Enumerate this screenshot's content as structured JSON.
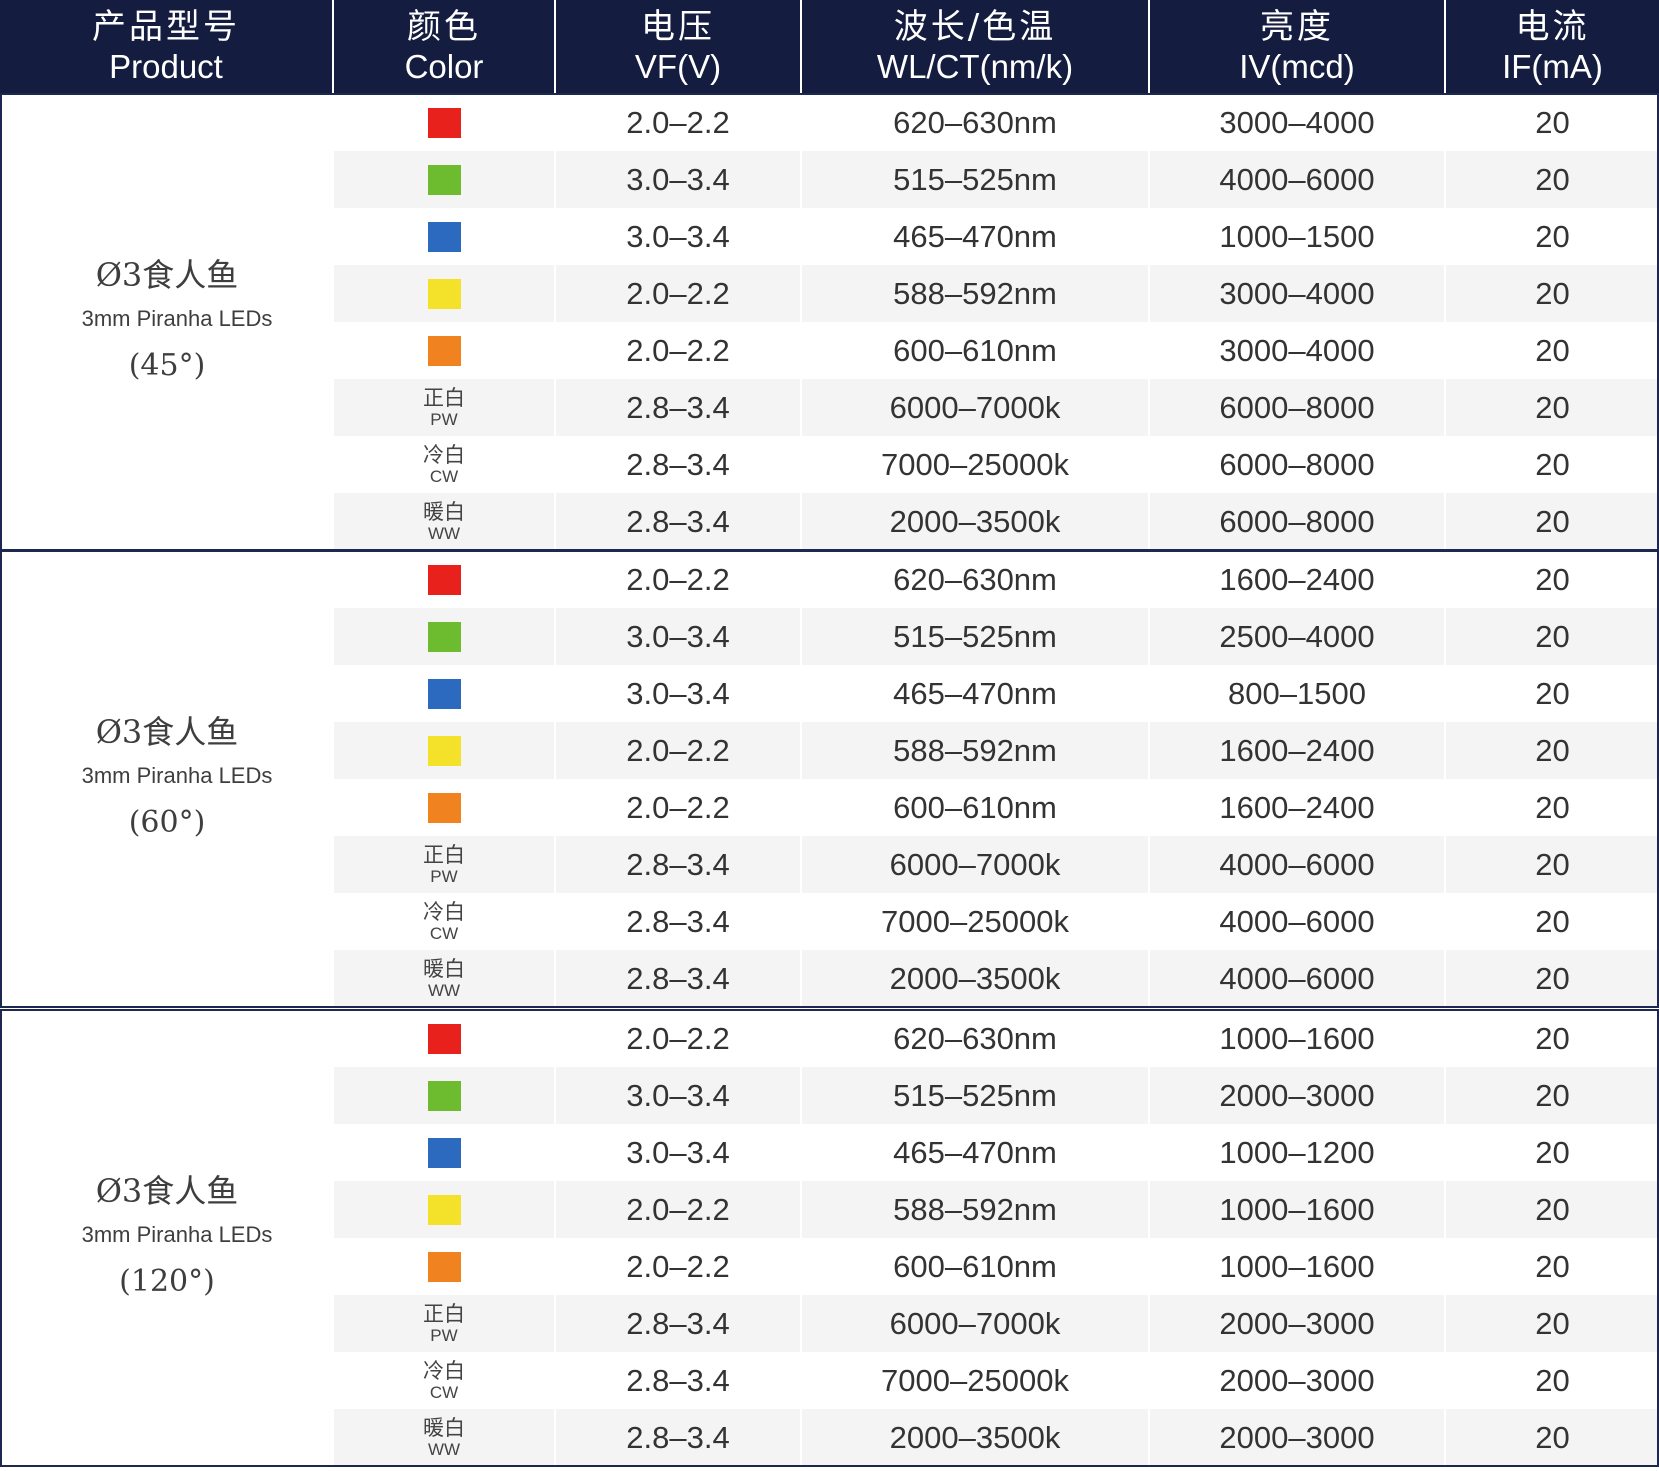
{
  "header": [
    {
      "zh": "产品型号",
      "en": "Product"
    },
    {
      "zh": "颜色",
      "en": "Color"
    },
    {
      "zh": "电压",
      "en": "VF(V)"
    },
    {
      "zh": "波长/色温",
      "en": "WL/CT(nm/k)"
    },
    {
      "zh": "亮度",
      "en": "IV(mcd)"
    },
    {
      "zh": "电流",
      "en": "IF(mA)"
    }
  ],
  "colors": {
    "header_bg": "#141c3f",
    "red": "#e8211d",
    "green": "#6dbb2f",
    "blue": "#2b6abf",
    "yellow": "#f4e22a",
    "orange": "#f0821f"
  },
  "groups": [
    {
      "product": {
        "name": "Ø3食人鱼",
        "sub": "3mm Piranha LEDs",
        "angle": "(45°)"
      },
      "rows": [
        {
          "swatch": "#e8211d",
          "vf": "2.0–2.2",
          "wl": "620–630nm",
          "iv": "3000–4000",
          "if": "20"
        },
        {
          "swatch": "#6dbb2f",
          "vf": "3.0–3.4",
          "wl": "515–525nm",
          "iv": "4000–6000",
          "if": "20"
        },
        {
          "swatch": "#2b6abf",
          "vf": "3.0–3.4",
          "wl": "465–470nm",
          "iv": "1000–1500",
          "if": "20"
        },
        {
          "swatch": "#f4e22a",
          "vf": "2.0–2.2",
          "wl": "588–592nm",
          "iv": "3000–4000",
          "if": "20"
        },
        {
          "swatch": "#f0821f",
          "vf": "2.0–2.2",
          "wl": "600–610nm",
          "iv": "3000–4000",
          "if": "20"
        },
        {
          "label_zh": "正白",
          "label_en": "PW",
          "vf": "2.8–3.4",
          "wl": "6000–7000k",
          "iv": "6000–8000",
          "if": "20"
        },
        {
          "label_zh": "冷白",
          "label_en": "CW",
          "vf": "2.8–3.4",
          "wl": "7000–25000k",
          "iv": "6000–8000",
          "if": "20"
        },
        {
          "label_zh": "暖白",
          "label_en": "WW",
          "vf": "2.8–3.4",
          "wl": "2000–3500k",
          "iv": "6000–8000",
          "if": "20"
        }
      ]
    },
    {
      "product": {
        "name": "Ø3食人鱼",
        "sub": "3mm Piranha LEDs",
        "angle": "(60°)"
      },
      "rows": [
        {
          "swatch": "#e8211d",
          "vf": "2.0–2.2",
          "wl": "620–630nm",
          "iv": "1600–2400",
          "if": "20"
        },
        {
          "swatch": "#6dbb2f",
          "vf": "3.0–3.4",
          "wl": "515–525nm",
          "iv": "2500–4000",
          "if": "20"
        },
        {
          "swatch": "#2b6abf",
          "vf": "3.0–3.4",
          "wl": "465–470nm",
          "iv": "800–1500",
          "if": "20"
        },
        {
          "swatch": "#f4e22a",
          "vf": "2.0–2.2",
          "wl": "588–592nm",
          "iv": "1600–2400",
          "if": "20"
        },
        {
          "swatch": "#f0821f",
          "vf": "2.0–2.2",
          "wl": "600–610nm",
          "iv": "1600–2400",
          "if": "20"
        },
        {
          "label_zh": "正白",
          "label_en": "PW",
          "vf": "2.8–3.4",
          "wl": "6000–7000k",
          "iv": "4000–6000",
          "if": "20"
        },
        {
          "label_zh": "冷白",
          "label_en": "CW",
          "vf": "2.8–3.4",
          "wl": "7000–25000k",
          "iv": "4000–6000",
          "if": "20"
        },
        {
          "label_zh": "暖白",
          "label_en": "WW",
          "vf": "2.8–3.4",
          "wl": "2000–3500k",
          "iv": "4000–6000",
          "if": "20"
        }
      ]
    },
    {
      "product": {
        "name": "Ø3食人鱼",
        "sub": "3mm Piranha LEDs",
        "angle": "(120°)"
      },
      "rows": [
        {
          "swatch": "#e8211d",
          "vf": "2.0–2.2",
          "wl": "620–630nm",
          "iv": "1000–1600",
          "if": "20"
        },
        {
          "swatch": "#6dbb2f",
          "vf": "3.0–3.4",
          "wl": "515–525nm",
          "iv": "2000–3000",
          "if": "20"
        },
        {
          "swatch": "#2b6abf",
          "vf": "3.0–3.4",
          "wl": "465–470nm",
          "iv": "1000–1200",
          "if": "20"
        },
        {
          "swatch": "#f4e22a",
          "vf": "2.0–2.2",
          "wl": "588–592nm",
          "iv": "1000–1600",
          "if": "20"
        },
        {
          "swatch": "#f0821f",
          "vf": "2.0–2.2",
          "wl": "600–610nm",
          "iv": "1000–1600",
          "if": "20"
        },
        {
          "label_zh": "正白",
          "label_en": "PW",
          "vf": "2.8–3.4",
          "wl": "6000–7000k",
          "iv": "2000–3000",
          "if": "20"
        },
        {
          "label_zh": "冷白",
          "label_en": "CW",
          "vf": "2.8–3.4",
          "wl": "7000–25000k",
          "iv": "2000–3000",
          "if": "20"
        },
        {
          "label_zh": "暖白",
          "label_en": "WW",
          "vf": "2.8–3.4",
          "wl": "2000–3500k",
          "iv": "2000–3000",
          "if": "20"
        }
      ]
    }
  ]
}
